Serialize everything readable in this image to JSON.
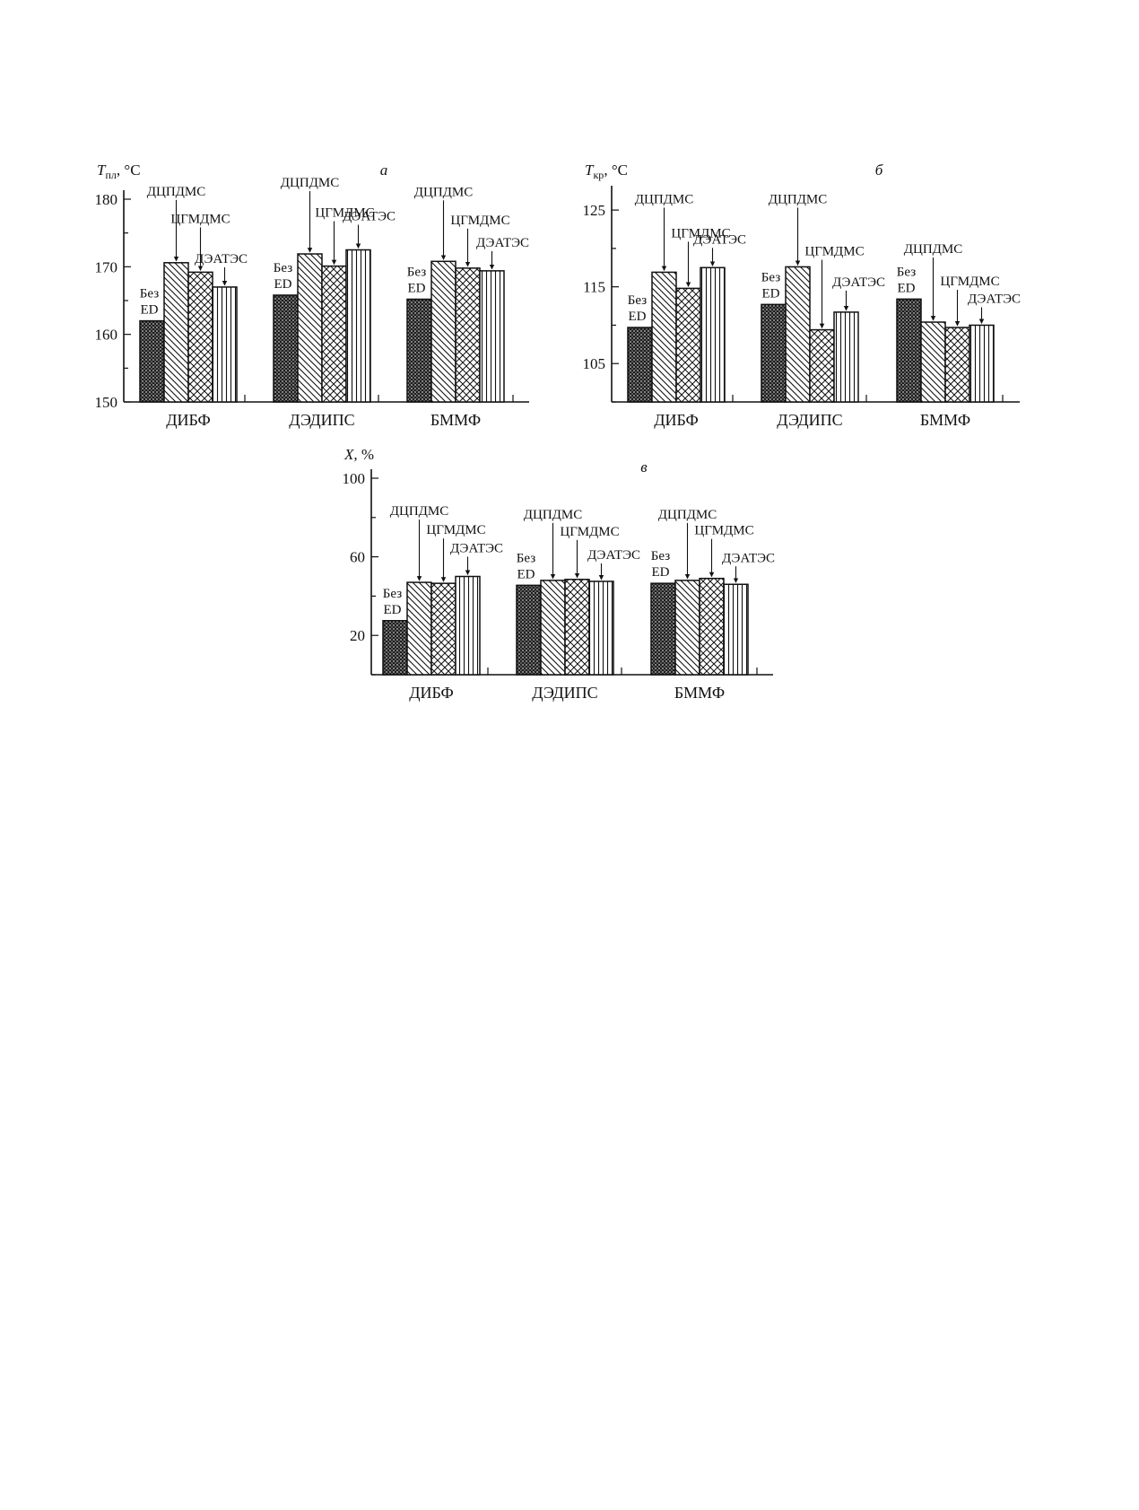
{
  "chart_data": [
    {
      "type": "bar",
      "panel_letter": "а",
      "ylabel_main": "T",
      "ylabel_sub": "пл",
      "ylabel_unit": ", °C",
      "ylim": [
        150,
        180
      ],
      "yticks": [
        150,
        160,
        170,
        180
      ],
      "categories": [
        "ДИБФ",
        "ДЭДИПС",
        "БММФ"
      ],
      "series": [
        {
          "name": "Без ED",
          "values": [
            162.0,
            165.8,
            165.2
          ]
        },
        {
          "name": "ДЦПДМС",
          "values": [
            170.6,
            171.9,
            170.8
          ]
        },
        {
          "name": "ЦГМДМС",
          "values": [
            169.2,
            170.1,
            169.8
          ]
        },
        {
          "name": "ДЭАТЭС",
          "values": [
            167.0,
            172.5,
            169.4
          ]
        }
      ]
    },
    {
      "type": "bar",
      "panel_letter": "б",
      "ylabel_main": "T",
      "ylabel_sub": "кр",
      "ylabel_unit": ", °C",
      "ylim": [
        100,
        127
      ],
      "yticks": [
        105,
        115,
        125
      ],
      "categories": [
        "ДИБФ",
        "ДЭДИПС",
        "БММФ"
      ],
      "series": [
        {
          "name": "Без ED",
          "values": [
            109.7,
            112.7,
            113.4
          ]
        },
        {
          "name": "ДЦПДМС",
          "values": [
            116.9,
            117.6,
            110.4
          ]
        },
        {
          "name": "ЦГМДМС",
          "values": [
            114.8,
            109.4,
            109.7
          ]
        },
        {
          "name": "ДЭАТЭС",
          "values": [
            117.5,
            111.7,
            110.0
          ]
        }
      ]
    },
    {
      "type": "bar",
      "panel_letter": "в",
      "ylabel_main": "X",
      "ylabel_sub": "",
      "ylabel_unit": ", %",
      "ylim": [
        0,
        100
      ],
      "yticks": [
        20,
        60,
        100
      ],
      "categories": [
        "ДИБФ",
        "ДЭДИПС",
        "БММФ"
      ],
      "series": [
        {
          "name": "Без ED",
          "values": [
            27.5,
            45.5,
            46.5
          ]
        },
        {
          "name": "ДЦПДМС",
          "values": [
            47.0,
            48.0,
            48.0
          ]
        },
        {
          "name": "ЦГМДМС",
          "values": [
            46.5,
            48.5,
            49.0
          ]
        },
        {
          "name": "ДЭАТЭС",
          "values": [
            50.0,
            47.5,
            46.0
          ]
        }
      ]
    }
  ]
}
